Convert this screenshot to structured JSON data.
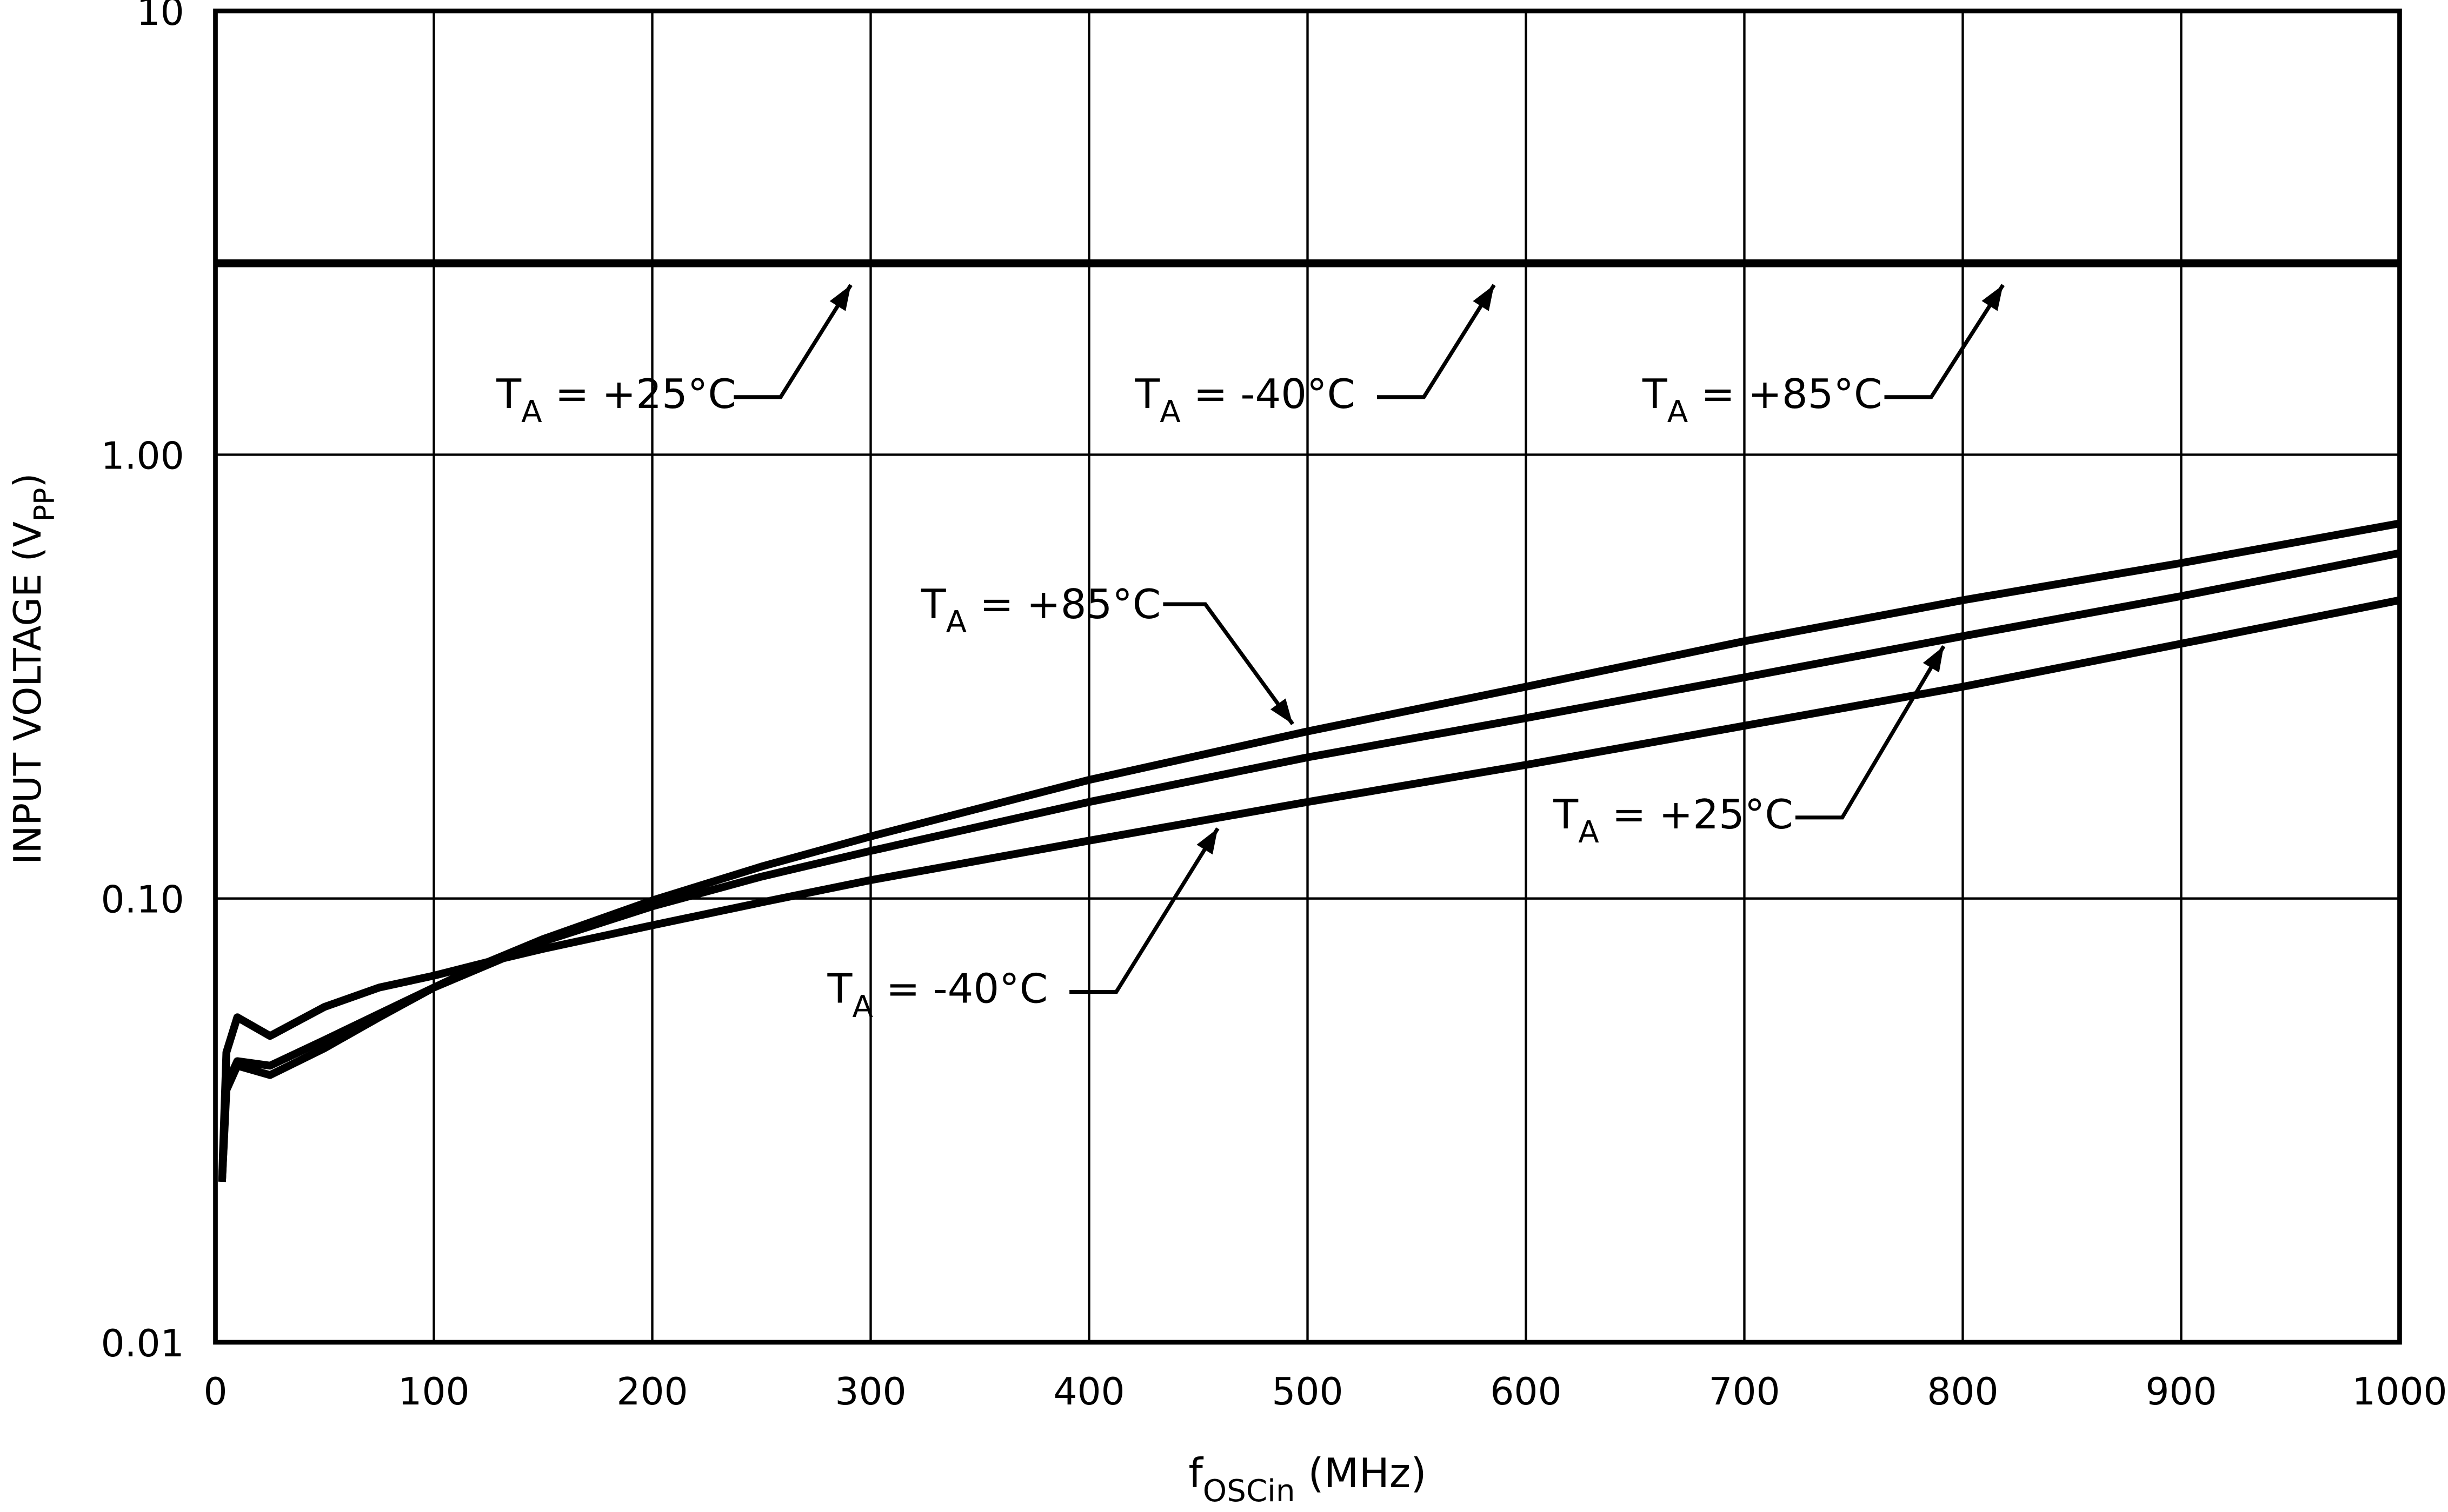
{
  "chart_data": {
    "type": "line",
    "x_label": {
      "base": "f",
      "sub": "OSCin",
      "rest": " (MHz)"
    },
    "y_label": {
      "base": "INPUT VOLTAGE (V",
      "sub": "PP",
      "rest": ")"
    },
    "xlim": [
      0,
      1000
    ],
    "xticks": [
      0,
      100,
      200,
      300,
      400,
      500,
      600,
      700,
      800,
      900,
      1000
    ],
    "ylim": [
      0.01,
      10
    ],
    "yticks": [
      {
        "value": 0.01,
        "label": "0.01"
      },
      {
        "value": 0.1,
        "label": "0.10"
      },
      {
        "value": 1,
        "label": "1.00"
      },
      {
        "value": 10,
        "label": "10"
      }
    ],
    "log_y": true,
    "grid": true,
    "color": "#000000",
    "series": [
      {
        "name": {
          "base": "T",
          "sub": "A",
          "rest": " = +25°C"
        },
        "x": [
          0,
          1000
        ],
        "values": [
          2.7,
          2.7
        ]
      },
      {
        "name": {
          "base": "T",
          "sub": "A",
          "rest": " = -40°C"
        },
        "x": [
          0,
          1000
        ],
        "values": [
          2.7,
          2.7
        ]
      },
      {
        "name": {
          "base": "T",
          "sub": "A",
          "rest": " = +85°C"
        },
        "x": [
          0,
          1000
        ],
        "values": [
          2.7,
          2.7
        ]
      },
      {
        "name": {
          "base": "T",
          "sub": "A",
          "rest": " = +85°C"
        },
        "x": [
          3,
          5,
          10,
          25,
          50,
          75,
          100,
          125,
          150,
          200,
          250,
          300,
          400,
          500,
          600,
          700,
          800,
          900,
          1000
        ],
        "values": [
          0.023,
          0.037,
          0.042,
          0.04,
          0.046,
          0.054,
          0.063,
          0.072,
          0.081,
          0.099,
          0.118,
          0.138,
          0.185,
          0.238,
          0.3,
          0.38,
          0.47,
          0.57,
          0.7
        ]
      },
      {
        "name": {
          "base": "T",
          "sub": "A",
          "rest": " = +25°C"
        },
        "x": [
          3,
          5,
          10,
          25,
          50,
          75,
          100,
          125,
          150,
          200,
          250,
          300,
          400,
          500,
          600,
          700,
          800,
          900,
          1000
        ],
        "values": [
          0.023,
          0.038,
          0.043,
          0.042,
          0.048,
          0.055,
          0.063,
          0.071,
          0.08,
          0.096,
          0.112,
          0.128,
          0.165,
          0.208,
          0.255,
          0.315,
          0.39,
          0.48,
          0.6
        ]
      },
      {
        "name": {
          "base": "T",
          "sub": "A",
          "rest": " = -40°C"
        },
        "x": [
          3,
          5,
          10,
          25,
          50,
          75,
          100,
          125,
          150,
          200,
          250,
          300,
          400,
          500,
          600,
          700,
          800,
          900,
          1000
        ],
        "values": [
          0.023,
          0.045,
          0.054,
          0.049,
          0.057,
          0.063,
          0.067,
          0.072,
          0.077,
          0.087,
          0.098,
          0.11,
          0.135,
          0.165,
          0.2,
          0.245,
          0.3,
          0.375,
          0.47
        ]
      }
    ]
  }
}
